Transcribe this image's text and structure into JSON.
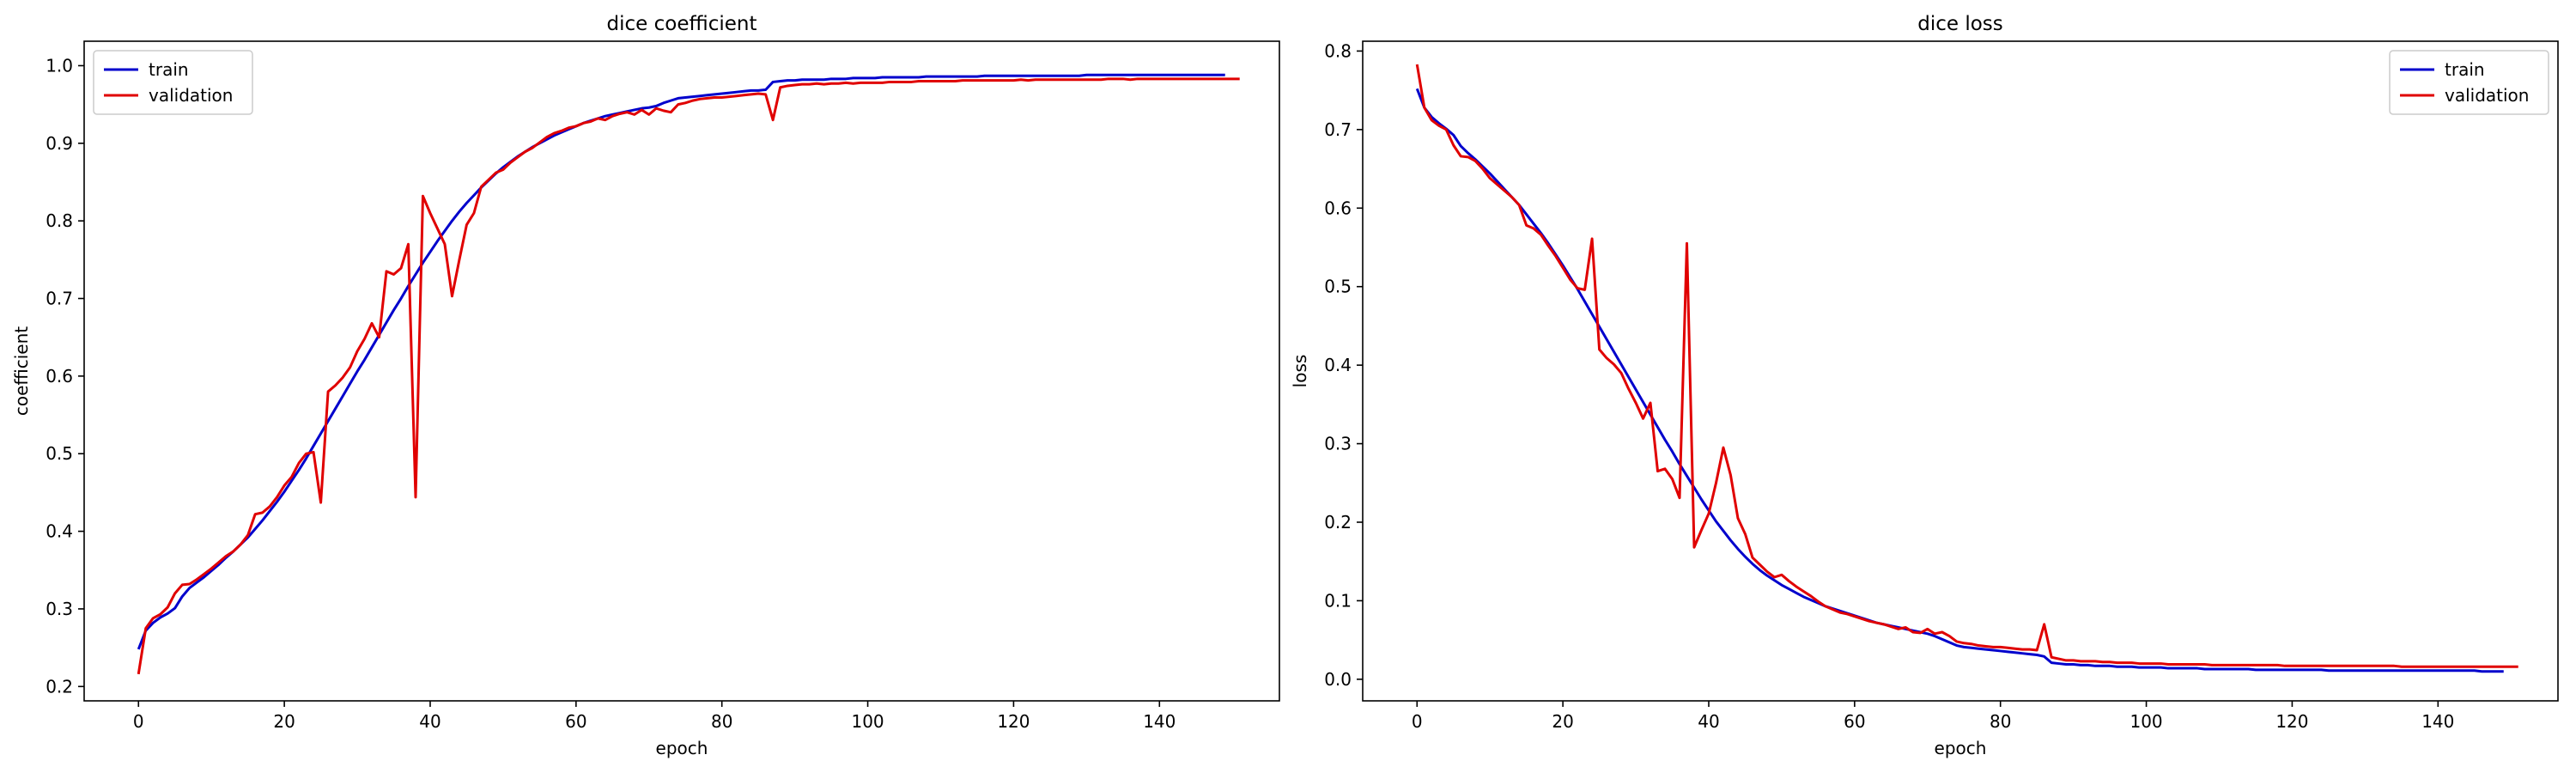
{
  "chart_data": [
    {
      "type": "line",
      "title": "dice coefficient",
      "xlabel": "epoch",
      "ylabel": "coefficient",
      "xlim": [
        -7.45,
        156.45
      ],
      "ylim": [
        0.1815,
        1.0315
      ],
      "xticks": [
        0,
        20,
        40,
        60,
        80,
        100,
        120,
        140
      ],
      "yticks": [
        0.2,
        0.3,
        0.4,
        0.5,
        0.6,
        0.7,
        0.8,
        0.9,
        1.0
      ],
      "ytick_format": 1,
      "grid": false,
      "legend": "upper left",
      "x_step": 1,
      "series": [
        {
          "name": "train",
          "color": "#0000cc",
          "values": [
            0.248,
            0.272,
            0.282,
            0.289,
            0.294,
            0.301,
            0.316,
            0.327,
            0.334,
            0.341,
            0.349,
            0.357,
            0.366,
            0.374,
            0.383,
            0.392,
            0.403,
            0.414,
            0.426,
            0.438,
            0.451,
            0.465,
            0.479,
            0.494,
            0.51,
            0.526,
            0.542,
            0.558,
            0.574,
            0.59,
            0.606,
            0.621,
            0.637,
            0.653,
            0.669,
            0.685,
            0.7,
            0.716,
            0.731,
            0.746,
            0.76,
            0.774,
            0.787,
            0.8,
            0.812,
            0.823,
            0.833,
            0.843,
            0.852,
            0.861,
            0.869,
            0.876,
            0.883,
            0.889,
            0.895,
            0.9,
            0.905,
            0.91,
            0.914,
            0.918,
            0.922,
            0.926,
            0.929,
            0.932,
            0.935,
            0.937,
            0.939,
            0.941,
            0.943,
            0.945,
            0.946,
            0.948,
            0.952,
            0.955,
            0.958,
            0.959,
            0.96,
            0.961,
            0.962,
            0.963,
            0.964,
            0.965,
            0.966,
            0.967,
            0.968,
            0.968,
            0.969,
            0.979,
            0.98,
            0.981,
            0.981,
            0.982,
            0.982,
            0.982,
            0.982,
            0.983,
            0.983,
            0.983,
            0.984,
            0.984,
            0.984,
            0.984,
            0.985,
            0.985,
            0.985,
            0.985,
            0.985,
            0.985,
            0.986,
            0.986,
            0.986,
            0.986,
            0.986,
            0.986,
            0.986,
            0.986,
            0.987,
            0.987,
            0.987,
            0.987,
            0.987,
            0.987,
            0.987,
            0.987,
            0.987,
            0.987,
            0.987,
            0.987,
            0.987,
            0.987,
            0.988,
            0.988,
            0.988,
            0.988,
            0.988,
            0.988,
            0.988,
            0.988,
            0.988,
            0.988,
            0.988,
            0.988,
            0.988,
            0.988,
            0.988,
            0.988,
            0.988,
            0.988,
            0.988,
            0.988
          ]
        },
        {
          "name": "validation",
          "color": "#e00000",
          "values": [
            0.216,
            0.275,
            0.288,
            0.293,
            0.302,
            0.32,
            0.331,
            0.332,
            0.338,
            0.345,
            0.352,
            0.36,
            0.368,
            0.374,
            0.383,
            0.395,
            0.422,
            0.424,
            0.432,
            0.444,
            0.459,
            0.47,
            0.488,
            0.5,
            0.502,
            0.437,
            0.58,
            0.588,
            0.598,
            0.611,
            0.632,
            0.648,
            0.668,
            0.65,
            0.735,
            0.731,
            0.739,
            0.77,
            0.444,
            0.832,
            0.81,
            0.79,
            0.77,
            0.703,
            0.75,
            0.795,
            0.81,
            0.844,
            0.853,
            0.862,
            0.866,
            0.875,
            0.882,
            0.889,
            0.894,
            0.901,
            0.908,
            0.913,
            0.916,
            0.92,
            0.922,
            0.926,
            0.928,
            0.932,
            0.93,
            0.935,
            0.938,
            0.94,
            0.937,
            0.943,
            0.937,
            0.945,
            0.942,
            0.94,
            0.95,
            0.952,
            0.955,
            0.957,
            0.958,
            0.959,
            0.959,
            0.96,
            0.961,
            0.962,
            0.963,
            0.964,
            0.963,
            0.93,
            0.972,
            0.974,
            0.975,
            0.976,
            0.976,
            0.977,
            0.976,
            0.977,
            0.977,
            0.978,
            0.977,
            0.978,
            0.978,
            0.978,
            0.978,
            0.979,
            0.979,
            0.979,
            0.979,
            0.98,
            0.98,
            0.98,
            0.98,
            0.98,
            0.98,
            0.981,
            0.981,
            0.981,
            0.981,
            0.981,
            0.981,
            0.981,
            0.981,
            0.982,
            0.981,
            0.982,
            0.982,
            0.982,
            0.982,
            0.982,
            0.982,
            0.982,
            0.982,
            0.982,
            0.982,
            0.983,
            0.983,
            0.983,
            0.982,
            0.983,
            0.983,
            0.983,
            0.983,
            0.983,
            0.983,
            0.983,
            0.983,
            0.983,
            0.983,
            0.983,
            0.983,
            0.983,
            0.983,
            0.983
          ]
        }
      ]
    },
    {
      "type": "line",
      "title": "dice loss",
      "xlabel": "epoch",
      "ylabel": "loss",
      "xlim": [
        -7.45,
        156.45
      ],
      "ylim": [
        -0.0275,
        0.8125
      ],
      "xticks": [
        0,
        20,
        40,
        60,
        80,
        100,
        120,
        140
      ],
      "yticks": [
        0.0,
        0.1,
        0.2,
        0.3,
        0.4,
        0.5,
        0.6,
        0.7,
        0.8
      ],
      "ytick_format": 1,
      "grid": false,
      "legend": "upper right",
      "x_step": 1,
      "series": [
        {
          "name": "train",
          "color": "#0000cc",
          "values": [
            0.752,
            0.728,
            0.716,
            0.708,
            0.701,
            0.693,
            0.679,
            0.67,
            0.662,
            0.653,
            0.644,
            0.634,
            0.624,
            0.614,
            0.604,
            0.592,
            0.58,
            0.568,
            0.555,
            0.541,
            0.527,
            0.512,
            0.497,
            0.481,
            0.465,
            0.449,
            0.433,
            0.417,
            0.401,
            0.385,
            0.369,
            0.353,
            0.337,
            0.321,
            0.305,
            0.29,
            0.274,
            0.259,
            0.244,
            0.229,
            0.215,
            0.201,
            0.189,
            0.177,
            0.166,
            0.156,
            0.147,
            0.139,
            0.132,
            0.126,
            0.12,
            0.115,
            0.11,
            0.105,
            0.101,
            0.097,
            0.093,
            0.09,
            0.087,
            0.084,
            0.081,
            0.078,
            0.075,
            0.072,
            0.07,
            0.068,
            0.066,
            0.064,
            0.062,
            0.06,
            0.058,
            0.055,
            0.051,
            0.047,
            0.043,
            0.041,
            0.04,
            0.039,
            0.038,
            0.037,
            0.036,
            0.035,
            0.034,
            0.033,
            0.032,
            0.031,
            0.029,
            0.021,
            0.02,
            0.019,
            0.019,
            0.018,
            0.018,
            0.017,
            0.017,
            0.017,
            0.016,
            0.016,
            0.016,
            0.015,
            0.015,
            0.015,
            0.015,
            0.014,
            0.014,
            0.014,
            0.014,
            0.014,
            0.013,
            0.013,
            0.013,
            0.013,
            0.013,
            0.013,
            0.013,
            0.012,
            0.012,
            0.012,
            0.012,
            0.012,
            0.012,
            0.012,
            0.012,
            0.012,
            0.012,
            0.011,
            0.011,
            0.011,
            0.011,
            0.011,
            0.011,
            0.011,
            0.011,
            0.011,
            0.011,
            0.011,
            0.011,
            0.011,
            0.011,
            0.011,
            0.011,
            0.011,
            0.011,
            0.011,
            0.011,
            0.011,
            0.01,
            0.01,
            0.01,
            0.01
          ]
        },
        {
          "name": "validation",
          "color": "#e00000",
          "values": [
            0.783,
            0.728,
            0.712,
            0.705,
            0.7,
            0.68,
            0.666,
            0.665,
            0.66,
            0.65,
            0.638,
            0.63,
            0.622,
            0.614,
            0.604,
            0.578,
            0.574,
            0.566,
            0.552,
            0.539,
            0.524,
            0.509,
            0.498,
            0.496,
            0.561,
            0.42,
            0.409,
            0.401,
            0.39,
            0.37,
            0.352,
            0.332,
            0.352,
            0.265,
            0.268,
            0.255,
            0.231,
            0.555,
            0.168,
            0.19,
            0.211,
            0.25,
            0.295,
            0.26,
            0.205,
            0.185,
            0.155,
            0.146,
            0.137,
            0.13,
            0.133,
            0.125,
            0.118,
            0.112,
            0.106,
            0.099,
            0.093,
            0.089,
            0.085,
            0.083,
            0.08,
            0.077,
            0.074,
            0.072,
            0.07,
            0.067,
            0.064,
            0.066,
            0.06,
            0.059,
            0.064,
            0.058,
            0.06,
            0.055,
            0.048,
            0.046,
            0.045,
            0.043,
            0.042,
            0.041,
            0.041,
            0.04,
            0.039,
            0.038,
            0.038,
            0.037,
            0.07,
            0.028,
            0.026,
            0.024,
            0.024,
            0.023,
            0.023,
            0.023,
            0.022,
            0.022,
            0.021,
            0.021,
            0.021,
            0.02,
            0.02,
            0.02,
            0.02,
            0.019,
            0.019,
            0.019,
            0.019,
            0.019,
            0.019,
            0.018,
            0.018,
            0.018,
            0.018,
            0.018,
            0.018,
            0.018,
            0.018,
            0.018,
            0.018,
            0.017,
            0.017,
            0.017,
            0.017,
            0.017,
            0.017,
            0.017,
            0.017,
            0.017,
            0.017,
            0.017,
            0.017,
            0.017,
            0.017,
            0.017,
            0.017,
            0.016,
            0.016,
            0.016,
            0.016,
            0.016,
            0.016,
            0.016,
            0.016,
            0.016,
            0.016,
            0.016,
            0.016,
            0.016,
            0.016,
            0.016,
            0.016,
            0.016
          ]
        }
      ]
    }
  ]
}
